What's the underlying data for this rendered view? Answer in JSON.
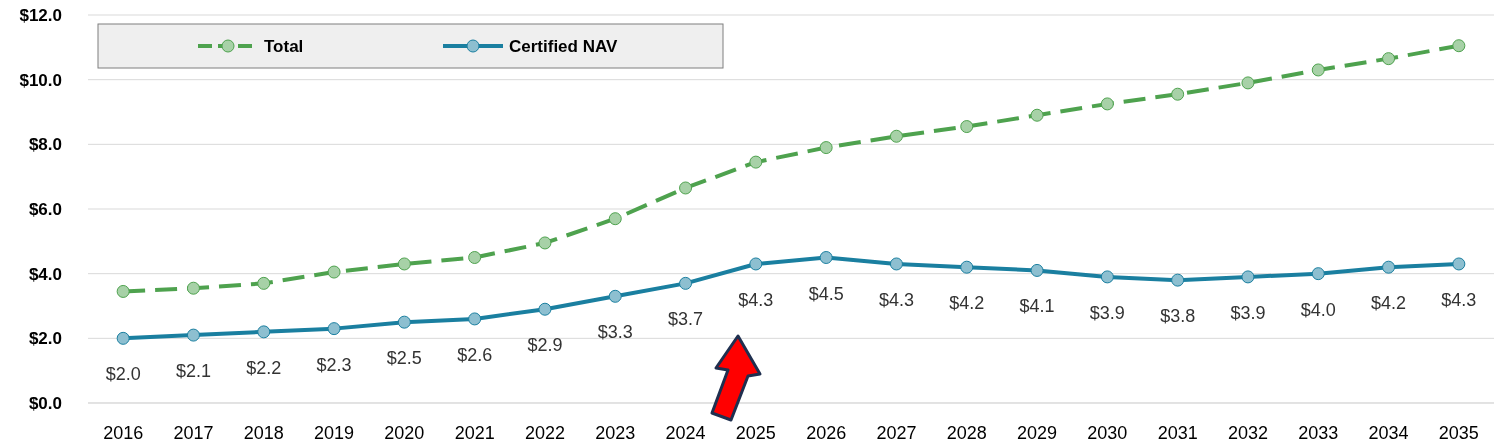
{
  "chart_data": {
    "type": "line",
    "categories": [
      "2016",
      "2017",
      "2018",
      "2019",
      "2020",
      "2021",
      "2022",
      "2023",
      "2024",
      "2025",
      "2026",
      "2027",
      "2028",
      "2029",
      "2030",
      "2031",
      "2032",
      "2033",
      "2034",
      "2035"
    ],
    "series": [
      {
        "name": "Total",
        "color": "#4ea24e",
        "line_style": "dashed",
        "values": [
          3.45,
          3.55,
          3.7,
          4.05,
          4.3,
          4.5,
          4.95,
          5.7,
          6.65,
          7.45,
          7.9,
          8.25,
          8.55,
          8.9,
          9.25,
          9.55,
          9.9,
          10.3,
          10.65,
          11.05
        ]
      },
      {
        "name": "Certified NAV",
        "color": "#1a7fa0",
        "line_style": "solid",
        "values": [
          2.0,
          2.1,
          2.2,
          2.3,
          2.5,
          2.6,
          2.9,
          3.3,
          3.7,
          4.3,
          4.5,
          4.3,
          4.2,
          4.1,
          3.9,
          3.8,
          3.9,
          4.0,
          4.2,
          4.3
        ],
        "value_labels": [
          "$2.0",
          "$2.1",
          "$2.2",
          "$2.3",
          "$2.5",
          "$2.6",
          "$2.9",
          "$3.3",
          "$3.7",
          "$4.3",
          "$4.5",
          "$4.3",
          "$4.2",
          "$4.1",
          "$3.9",
          "$3.8",
          "$3.9",
          "$4.0",
          "$4.2",
          "$4.3"
        ]
      }
    ],
    "ylim": [
      0,
      12
    ],
    "yticks": [
      {
        "value": 0,
        "label": "$0.0"
      },
      {
        "value": 2,
        "label": "$2.0"
      },
      {
        "value": 4,
        "label": "$4.0"
      },
      {
        "value": 6,
        "label": "$6.0"
      },
      {
        "value": 8,
        "label": "$8.0"
      },
      {
        "value": 10,
        "label": "$10.0"
      },
      {
        "value": 12,
        "label": "$12.0"
      }
    ],
    "grid": "y",
    "legend": "top left",
    "marker": "circle"
  }
}
